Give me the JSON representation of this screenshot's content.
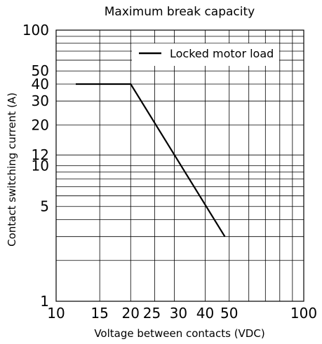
{
  "chart_data": {
    "type": "line",
    "title": "Maximum break capacity",
    "xlabel": "Voltage between contacts (VDC)",
    "ylabel": "Contact switching current (A)",
    "x_scale": "log",
    "y_scale": "log",
    "xlim": [
      10,
      100
    ],
    "ylim": [
      1,
      100
    ],
    "x_ticks": [
      10,
      15,
      20,
      25,
      30,
      40,
      50,
      100
    ],
    "x_tick_labels": [
      "10",
      "15",
      "20",
      "25",
      "30",
      "40",
      "50",
      "100"
    ],
    "y_ticks": [
      1,
      5,
      10,
      12,
      20,
      30,
      40,
      50,
      100
    ],
    "y_tick_labels": [
      "1",
      "5",
      "10",
      "12",
      "20",
      "30",
      "40",
      "50",
      "100"
    ],
    "x_grid": [
      10,
      15,
      20,
      25,
      30,
      40,
      50,
      60,
      70,
      80,
      90,
      100
    ],
    "y_grid": [
      1,
      2,
      3,
      4,
      5,
      6,
      7,
      8,
      9,
      10,
      12,
      20,
      30,
      40,
      50,
      60,
      70,
      80,
      90,
      100
    ],
    "grid": true,
    "legend_position": "top-right",
    "series": [
      {
        "name": "Locked motor load",
        "color": "#000000",
        "x": [
          12,
          20,
          48
        ],
        "y": [
          40,
          40,
          3
        ]
      }
    ]
  }
}
